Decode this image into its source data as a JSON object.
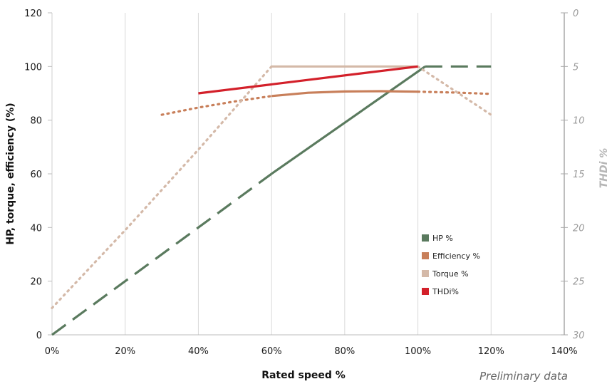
{
  "chart_data": {
    "type": "line",
    "title": "",
    "xlabel": "Rated speed %",
    "ylabel": "HP, torque, efficiency (%)",
    "y2label": "THDi %",
    "note": "Preliminary data",
    "xlim": [
      0,
      140
    ],
    "ylim": [
      0,
      120
    ],
    "y2lim": [
      30,
      0
    ],
    "xticks": [
      0,
      20,
      40,
      60,
      80,
      100,
      120,
      140
    ],
    "xtick_labels": [
      "0%",
      "20%",
      "40%",
      "60%",
      "80%",
      "100%",
      "120%",
      "140%"
    ],
    "yticks": [
      0,
      20,
      40,
      60,
      80,
      100,
      120
    ],
    "ytick_labels": [
      "0",
      "20",
      "40",
      "60",
      "80",
      "100",
      "120"
    ],
    "y2ticks": [
      30,
      25,
      20,
      15,
      10,
      5,
      0
    ],
    "y2tick_labels": [
      "30",
      "25",
      "20",
      "15",
      "10",
      "5",
      "0"
    ],
    "grid": "vertical",
    "legend_position": "bottom-right",
    "series": [
      {
        "name": "HP %",
        "color": "#5a7a5e",
        "axis": "left",
        "segments": [
          {
            "style": "dashed",
            "x": [
              0,
              60
            ],
            "y": [
              0,
              60
            ]
          },
          {
            "style": "solid",
            "x": [
              60,
              102
            ],
            "y": [
              60,
              100
            ]
          },
          {
            "style": "dashed",
            "x": [
              102,
              120
            ],
            "y": [
              100,
              100
            ]
          }
        ]
      },
      {
        "name": "Efficiency %",
        "color": "#c87f5a",
        "axis": "left",
        "segments": [
          {
            "style": "dotted",
            "x": [
              30,
              40,
              50,
              60
            ],
            "y": [
              82,
              84.7,
              87,
              89
            ]
          },
          {
            "style": "solid",
            "x": [
              60,
              70,
              80,
              90,
              100
            ],
            "y": [
              89,
              90.2,
              90.7,
              90.8,
              90.6
            ]
          },
          {
            "style": "dotted",
            "x": [
              100,
              110,
              120
            ],
            "y": [
              90.6,
              90.3,
              89.8
            ]
          }
        ]
      },
      {
        "name": "Torque %",
        "color": "#d4b9a8",
        "axis": "left",
        "segments": [
          {
            "style": "dotted",
            "x": [
              0,
              20,
              40,
              60
            ],
            "y": [
              10,
              39,
              69,
              100
            ]
          },
          {
            "style": "solid",
            "x": [
              60,
              100
            ],
            "y": [
              100,
              100
            ]
          },
          {
            "style": "dotted",
            "x": [
              100,
              120
            ],
            "y": [
              100,
              82
            ]
          }
        ]
      },
      {
        "name": "THDi%",
        "color": "#d3202a",
        "axis": "right",
        "segments": [
          {
            "style": "solid",
            "x": [
              40,
              100
            ],
            "y": [
              7.5,
              5
            ]
          }
        ]
      }
    ]
  }
}
